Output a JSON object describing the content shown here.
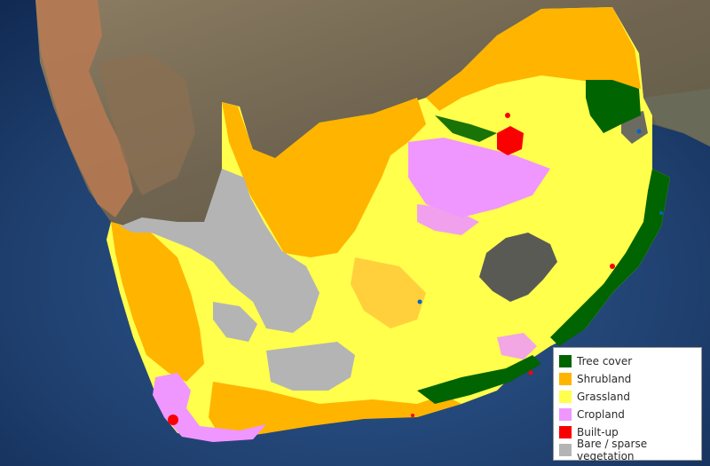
{
  "map": {
    "legend": {
      "items": [
        {
          "label": "Tree cover",
          "color": "#006400"
        },
        {
          "label": "Shrubland",
          "color": "#ffb400"
        },
        {
          "label": "Grassland",
          "color": "#ffff4c"
        },
        {
          "label": "Cropland",
          "color": "#f096ff"
        },
        {
          "label": "Built-up",
          "color": "#fa0000"
        },
        {
          "label": "Bare / sparse vegetation",
          "color": "#b4b4b4"
        }
      ]
    },
    "colors": {
      "ocean": "#1f3f6e",
      "ocean_deep": "#0f2850",
      "land_satellite": "#7a6d55",
      "desert_sand": "#b87a52"
    }
  }
}
